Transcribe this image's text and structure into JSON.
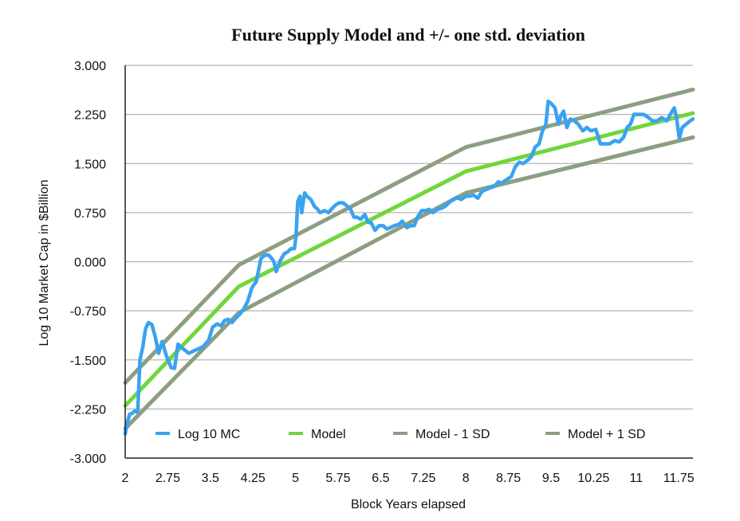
{
  "chart_data": {
    "type": "line",
    "title": "Future Supply Model and +/- one std. deviation",
    "xlabel": "Block Years elapsed",
    "ylabel": "Log 10 Market Cap in $Billion",
    "xlim": [
      2,
      12
    ],
    "ylim": [
      -3.0,
      3.0
    ],
    "x_ticks": [
      2,
      2.75,
      3.5,
      4.25,
      5,
      5.75,
      6.5,
      7.25,
      8,
      8.75,
      9.5,
      10.25,
      11,
      11.75
    ],
    "x_tick_labels": [
      "2",
      "2.75",
      "3.5",
      "4.25",
      "5",
      "5.75",
      "6.5",
      "7.25",
      "8",
      "8.75",
      "9.5",
      "10.25",
      "11",
      "11.75"
    ],
    "y_ticks": [
      -3.0,
      -2.25,
      -1.5,
      -0.75,
      0.0,
      0.75,
      1.5,
      2.25,
      3.0
    ],
    "y_tick_labels": [
      "-3.000",
      "-2.250",
      "-1.500",
      "-0.750",
      "0.000",
      "0.750",
      "1.500",
      "2.250",
      "3.000"
    ],
    "grid": "horizontal",
    "legend_position": "bottom-inside",
    "series": [
      {
        "name": "Log 10 MC",
        "color": "#3aa3f0",
        "x": [
          2,
          2.04,
          2.08,
          2.12,
          2.17,
          2.22,
          2.26,
          2.31,
          2.36,
          2.41,
          2.47,
          2.53,
          2.59,
          2.65,
          2.73,
          2.81,
          2.87,
          2.93,
          3.02,
          3.12,
          3.24,
          3.37,
          3.47,
          3.54,
          3.62,
          3.69,
          3.75,
          3.81,
          3.88,
          3.95,
          4.02,
          4.09,
          4.16,
          4.23,
          4.31,
          4.39,
          4.46,
          4.53,
          4.58,
          4.62,
          4.66,
          4.72,
          4.8,
          4.86,
          4.92,
          4.98,
          5.01,
          5.04,
          5.08,
          5.11,
          5.16,
          5.2,
          5.27,
          5.33,
          5.39,
          5.43,
          5.51,
          5.58,
          5.65,
          5.71,
          5.77,
          5.84,
          5.91,
          5.97,
          6.03,
          6.08,
          6.15,
          6.22,
          6.28,
          6.33,
          6.4,
          6.47,
          6.54,
          6.61,
          6.67,
          6.74,
          6.82,
          6.88,
          6.96,
          7.03,
          7.09,
          7.15,
          7.22,
          7.29,
          7.35,
          7.42,
          7.5,
          7.58,
          7.64,
          7.7,
          7.77,
          7.84,
          7.92,
          8,
          8.06,
          8.13,
          8.21,
          8.28,
          8.35,
          8.43,
          8.5,
          8.57,
          8.63,
          8.71,
          8.8,
          8.87,
          8.94,
          9.01,
          9.09,
          9.15,
          9.22,
          9.29,
          9.35,
          9.41,
          9.45,
          9.5,
          9.57,
          9.63,
          9.67,
          9.72,
          9.78,
          9.84,
          9.91,
          9.98,
          10.06,
          10.13,
          10.2,
          10.29,
          10.37,
          10.45,
          10.53,
          10.62,
          10.7,
          10.78,
          10.84,
          10.9,
          10.96,
          11.05,
          11.13,
          11.22,
          11.29,
          11.37,
          11.45,
          11.54,
          11.62,
          11.67,
          11.71,
          11.76,
          11.81,
          11.88,
          11.95,
          12
        ],
        "values": [
          -2.63,
          -2.45,
          -2.33,
          -2.32,
          -2.28,
          -2.3,
          -1.5,
          -1.3,
          -1.02,
          -0.93,
          -0.96,
          -1.15,
          -1.4,
          -1.22,
          -1.45,
          -1.62,
          -1.63,
          -1.26,
          -1.33,
          -1.4,
          -1.35,
          -1.3,
          -1.2,
          -1.0,
          -0.95,
          -0.98,
          -0.9,
          -0.88,
          -0.93,
          -0.86,
          -0.8,
          -0.72,
          -0.6,
          -0.4,
          -0.3,
          0.05,
          0.1,
          0.1,
          0.05,
          0.0,
          -0.15,
          0.0,
          0.12,
          0.15,
          0.2,
          0.2,
          0.4,
          0.92,
          1.0,
          0.75,
          1.05,
          1.0,
          0.95,
          0.85,
          0.8,
          0.75,
          0.78,
          0.75,
          0.82,
          0.87,
          0.9,
          0.9,
          0.85,
          0.8,
          0.68,
          0.68,
          0.65,
          0.72,
          0.6,
          0.6,
          0.48,
          0.55,
          0.55,
          0.5,
          0.52,
          0.55,
          0.57,
          0.62,
          0.52,
          0.55,
          0.55,
          0.68,
          0.78,
          0.78,
          0.8,
          0.75,
          0.8,
          0.82,
          0.85,
          0.9,
          0.95,
          0.98,
          0.95,
          1.0,
          1.0,
          1.02,
          0.97,
          1.07,
          1.1,
          1.13,
          1.15,
          1.22,
          1.2,
          1.25,
          1.3,
          1.45,
          1.52,
          1.5,
          1.55,
          1.6,
          1.75,
          1.8,
          2.0,
          2.1,
          2.45,
          2.42,
          2.35,
          2.1,
          2.22,
          2.3,
          2.05,
          2.18,
          2.15,
          2.1,
          2.0,
          2.05,
          2.0,
          2.02,
          1.8,
          1.8,
          1.8,
          1.85,
          1.83,
          1.9,
          2.05,
          2.1,
          2.25,
          2.25,
          2.25,
          2.2,
          2.15,
          2.15,
          2.2,
          2.15,
          2.28,
          2.35,
          2.2,
          1.88,
          2.05,
          2.1,
          2.15,
          2.18
        ]
      },
      {
        "name": "Model",
        "color": "#70d63c",
        "x": [
          2,
          4.0,
          8.0,
          12
        ],
        "values": [
          -2.2,
          -0.38,
          1.38,
          2.27
        ]
      },
      {
        "name": "Model - 1 SD",
        "color": "#8d9e81",
        "x": [
          2,
          4.0,
          8.0,
          12
        ],
        "values": [
          -2.55,
          -0.78,
          1.05,
          1.9
        ]
      },
      {
        "name": "Model + 1 SD",
        "color": "#8d9e81",
        "x": [
          2,
          4.0,
          8.0,
          12
        ],
        "values": [
          -1.85,
          -0.05,
          1.75,
          2.63
        ]
      }
    ]
  }
}
